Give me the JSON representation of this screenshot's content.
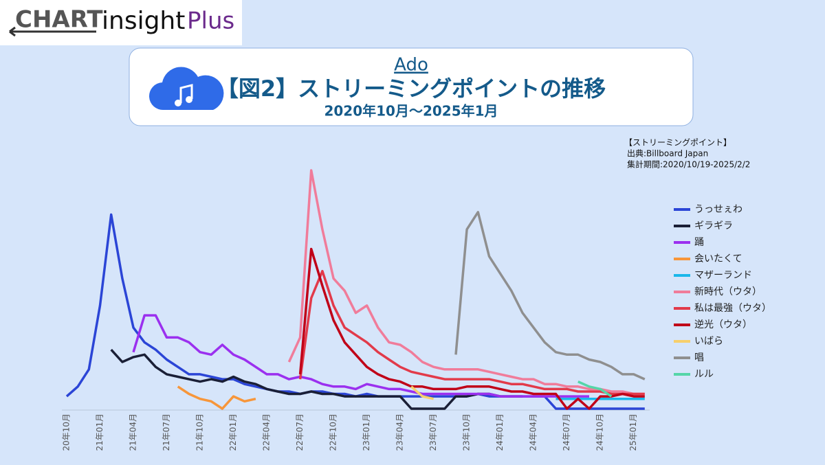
{
  "logo": {
    "brand": "CHART",
    "word": "insight",
    "plus": "Plus"
  },
  "chart_data": {
    "type": "line",
    "artist": "Ado",
    "title": "【図2】ストリーミングポイントの推移",
    "subtitle": "2020年10月～2025年1月",
    "notes": [
      "【ストリーミングポイント】",
      "出典:Billboard Japan",
      "集計期間:2020/10/19-2025/2/2"
    ],
    "categories": [
      "20年10月",
      null,
      null,
      "21年01月",
      null,
      null,
      "21年04月",
      null,
      null,
      "21年07月",
      null,
      null,
      "21年10月",
      null,
      null,
      "22年01月",
      null,
      null,
      "22年04月",
      null,
      null,
      "22年07月",
      null,
      null,
      "22年10月",
      null,
      null,
      "23年01月",
      null,
      null,
      "23年04月",
      null,
      null,
      "23年07月",
      null,
      null,
      "23年10月",
      null,
      null,
      "24年01月",
      null,
      null,
      "24年04月",
      null,
      null,
      "24年07月",
      null,
      null,
      "24年10月",
      null,
      null,
      "25年01月",
      null
    ],
    "legend": "right",
    "series": [
      {
        "name": "うっせぇわ",
        "color": "#2b45d6",
        "values": [
          5,
          9,
          16,
          42,
          79,
          53,
          33,
          27,
          24,
          20,
          17,
          14,
          14,
          13,
          12,
          12,
          10,
          9,
          8,
          7,
          7,
          6,
          7,
          7,
          6,
          6,
          5,
          6,
          5,
          5,
          5,
          5,
          5,
          5,
          5,
          5,
          5,
          6,
          5,
          5,
          5,
          5,
          5,
          5,
          0,
          0,
          0,
          0,
          0,
          0,
          0,
          0,
          0
        ]
      },
      {
        "name": "ギラギラ",
        "color": "#1a1f36",
        "values": [
          null,
          null,
          null,
          null,
          24,
          19,
          21,
          22,
          17,
          14,
          13,
          12,
          11,
          12,
          11,
          13,
          11,
          10,
          8,
          7,
          6,
          6,
          7,
          6,
          6,
          5,
          5,
          5,
          5,
          5,
          5,
          0,
          0,
          0,
          0,
          5,
          5,
          6,
          6,
          5,
          5,
          5,
          null,
          null,
          null,
          null,
          null,
          null,
          null,
          null,
          null,
          null,
          null
        ]
      },
      {
        "name": "踊",
        "color": "#9b30ef",
        "values": [
          null,
          null,
          null,
          null,
          null,
          null,
          23,
          38,
          38,
          29,
          29,
          27,
          23,
          22,
          26,
          22,
          20,
          17,
          14,
          14,
          12,
          13,
          12,
          10,
          9,
          9,
          8,
          10,
          9,
          8,
          8,
          7,
          6,
          6,
          6,
          6,
          6,
          6,
          6,
          5,
          5,
          5,
          5,
          5,
          5,
          5,
          5,
          5,
          null,
          null,
          null,
          null,
          null
        ]
      },
      {
        "name": "会いたくて",
        "color": "#f7963a",
        "values": [
          null,
          null,
          null,
          null,
          null,
          null,
          null,
          null,
          null,
          null,
          9,
          6,
          4,
          3,
          0,
          5,
          3,
          4,
          null,
          null,
          null,
          null,
          null,
          null,
          null,
          null,
          null,
          null,
          null,
          null,
          null,
          null,
          null,
          null,
          null,
          null,
          null,
          null,
          null,
          null,
          null,
          null,
          null,
          null,
          null,
          null,
          null,
          null,
          null,
          null,
          null,
          null,
          null
        ]
      },
      {
        "name": "マザーランド",
        "color": "#1ab7ea",
        "values": [
          null,
          null,
          null,
          null,
          null,
          null,
          null,
          null,
          null,
          null,
          null,
          null,
          null,
          null,
          null,
          null,
          null,
          null,
          null,
          null,
          null,
          null,
          null,
          null,
          null,
          null,
          null,
          null,
          null,
          null,
          null,
          null,
          null,
          null,
          null,
          null,
          null,
          null,
          null,
          null,
          null,
          null,
          null,
          null,
          4,
          4,
          4,
          4,
          4,
          4,
          4,
          4,
          4
        ]
      },
      {
        "name": "新時代（ウタ）",
        "color": "#f07c9a",
        "values": [
          null,
          null,
          null,
          null,
          null,
          null,
          null,
          null,
          null,
          null,
          null,
          null,
          null,
          null,
          null,
          null,
          null,
          null,
          null,
          null,
          19,
          29,
          97,
          73,
          53,
          48,
          39,
          42,
          33,
          27,
          26,
          23,
          19,
          17,
          16,
          16,
          16,
          16,
          15,
          14,
          13,
          12,
          12,
          10,
          10,
          9,
          9,
          8,
          8,
          7,
          7,
          6,
          6
        ]
      },
      {
        "name": "私は最強（ウタ）",
        "color": "#e23a4a",
        "values": [
          null,
          null,
          null,
          null,
          null,
          null,
          null,
          null,
          null,
          null,
          null,
          null,
          null,
          null,
          null,
          null,
          null,
          null,
          null,
          null,
          null,
          12,
          45,
          56,
          42,
          33,
          30,
          27,
          23,
          20,
          17,
          15,
          14,
          13,
          12,
          12,
          12,
          12,
          12,
          11,
          10,
          10,
          9,
          8,
          8,
          8,
          7,
          7,
          7,
          6,
          6,
          6,
          6
        ]
      },
      {
        "name": "逆光（ウタ）",
        "color": "#c00018",
        "values": [
          null,
          null,
          null,
          null,
          null,
          null,
          null,
          null,
          null,
          null,
          null,
          null,
          null,
          null,
          null,
          null,
          null,
          null,
          null,
          null,
          null,
          14,
          65,
          50,
          36,
          27,
          22,
          17,
          14,
          12,
          11,
          9,
          9,
          8,
          8,
          8,
          9,
          9,
          9,
          8,
          7,
          7,
          6,
          6,
          6,
          0,
          4,
          0,
          5,
          5,
          6,
          5,
          5
        ]
      },
      {
        "name": "いばら",
        "color": "#f7cf6b",
        "values": [
          null,
          null,
          null,
          null,
          null,
          null,
          null,
          null,
          null,
          null,
          null,
          null,
          null,
          null,
          null,
          null,
          null,
          null,
          null,
          null,
          null,
          null,
          null,
          null,
          null,
          null,
          null,
          null,
          null,
          null,
          null,
          9,
          5,
          4,
          null,
          null,
          null,
          null,
          null,
          null,
          null,
          null,
          null,
          null,
          null,
          null,
          null,
          null,
          null,
          null,
          null,
          null,
          null
        ]
      },
      {
        "name": "唱",
        "color": "#8f8f8f",
        "values": [
          null,
          null,
          null,
          null,
          null,
          null,
          null,
          null,
          null,
          null,
          null,
          null,
          null,
          null,
          null,
          null,
          null,
          null,
          null,
          null,
          null,
          null,
          null,
          null,
          null,
          null,
          null,
          null,
          null,
          null,
          null,
          null,
          null,
          null,
          null,
          22,
          73,
          80,
          62,
          55,
          48,
          39,
          33,
          27,
          23,
          22,
          22,
          20,
          19,
          17,
          14,
          14,
          12
        ]
      },
      {
        "name": "ルル",
        "color": "#55d6a8",
        "values": [
          null,
          null,
          null,
          null,
          null,
          null,
          null,
          null,
          null,
          null,
          null,
          null,
          null,
          null,
          null,
          null,
          null,
          null,
          null,
          null,
          null,
          null,
          null,
          null,
          null,
          null,
          null,
          null,
          null,
          null,
          null,
          null,
          null,
          null,
          null,
          null,
          null,
          null,
          null,
          null,
          null,
          null,
          null,
          null,
          null,
          null,
          11,
          9,
          8,
          5,
          null,
          null,
          null
        ]
      }
    ]
  }
}
